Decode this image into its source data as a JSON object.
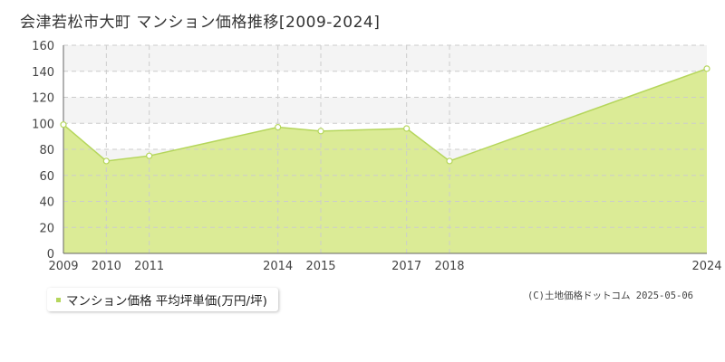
{
  "title": "会津若松市大町 マンション価格推移[2009-2024]",
  "credit": "(C)土地価格ドットコム 2025-05-06",
  "colors": {
    "fill": "#dbeb96",
    "line": "#b5d65c",
    "marker": "#b5d65c",
    "band": "#f4f4f4",
    "grid": "#cccccc"
  },
  "chart_data": {
    "type": "area",
    "x": [
      "2009",
      "2010",
      "2011",
      "2014",
      "2015",
      "2017",
      "2018",
      "2024"
    ],
    "series": [
      {
        "name": "マンション価格 平均坪単価(万円/坪)",
        "values": [
          99,
          71,
          75,
          97,
          94,
          96,
          71,
          142
        ]
      }
    ],
    "ylim": [
      0,
      160
    ],
    "yticks": [
      0,
      20,
      40,
      60,
      80,
      100,
      120,
      140,
      160
    ],
    "grid": true,
    "legend": "bottom-left"
  }
}
